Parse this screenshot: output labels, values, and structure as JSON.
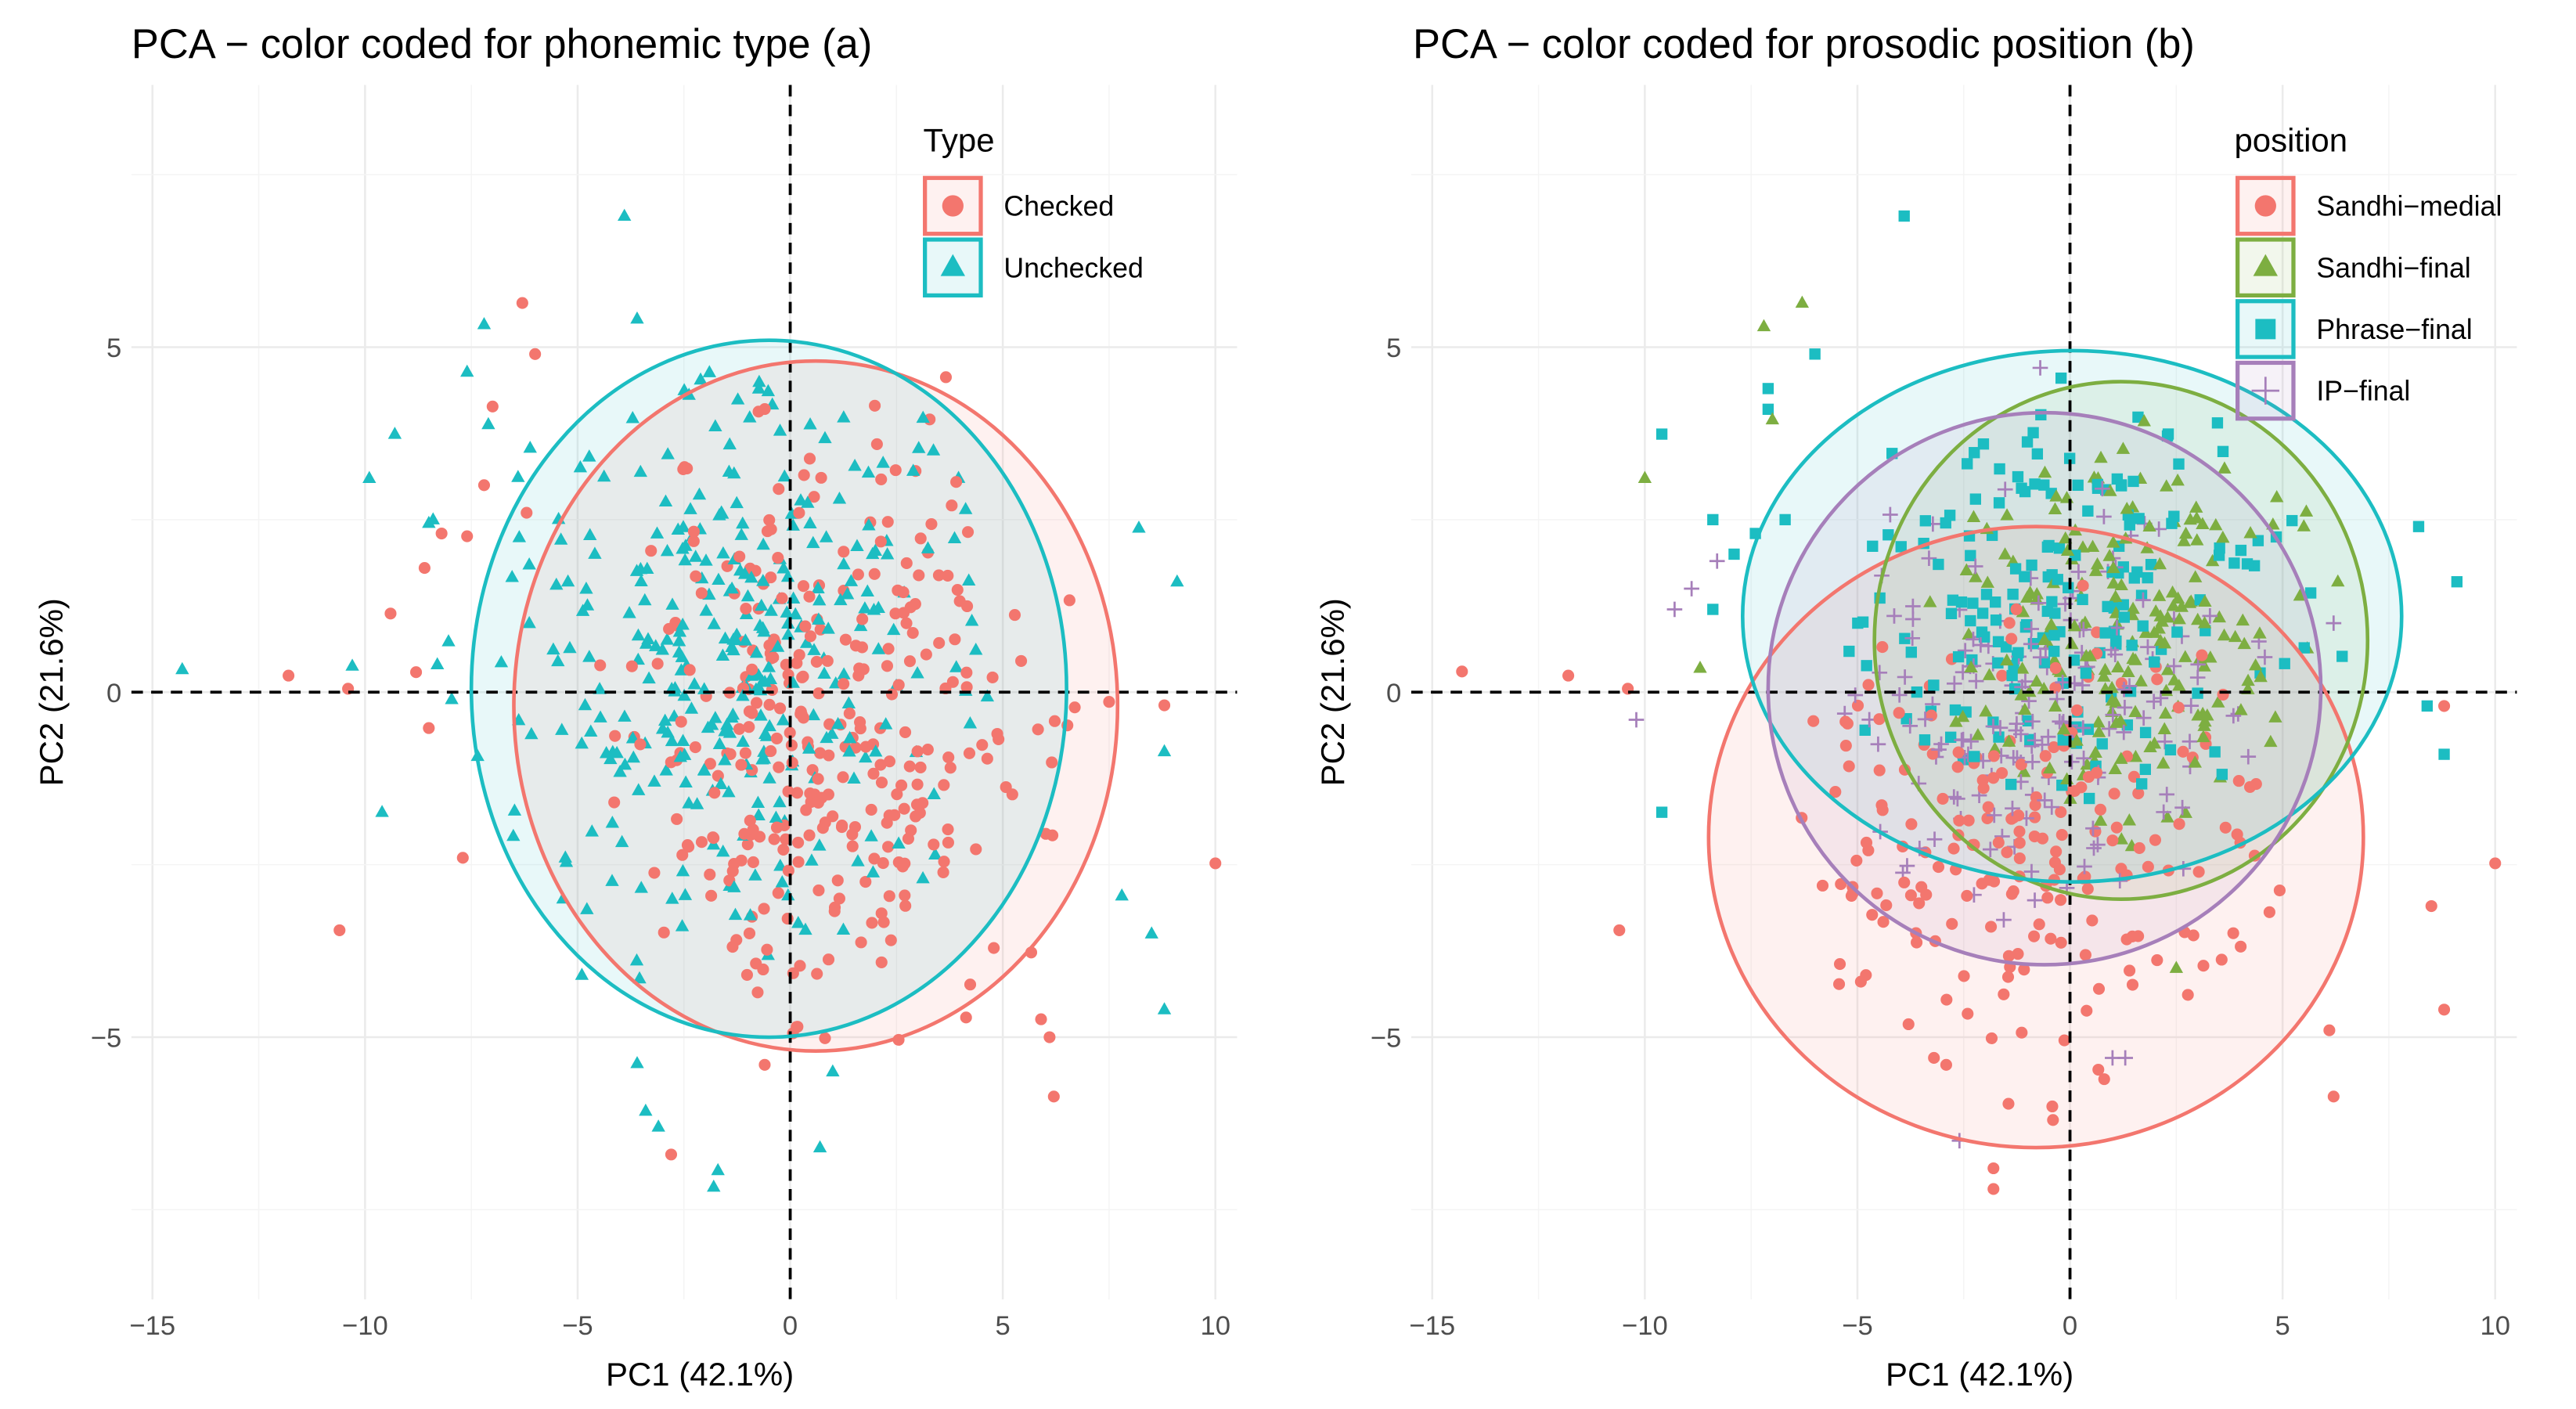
{
  "chart_data": [
    {
      "type": "scatter",
      "title": "PCA − color coded for phonemic type (a)",
      "xlabel": "PC1 (42.1%)",
      "ylabel": "PC2 (21.6%)",
      "xlim": [
        -15.5,
        10.5
      ],
      "ylim": [
        -8.8,
        8.8
      ],
      "xticks": [
        -15,
        -10,
        -5,
        0,
        5,
        10
      ],
      "yticks": [
        -5,
        0,
        5
      ],
      "grid": true,
      "reference_lines": {
        "x": 0,
        "y": 0,
        "style": "dashed"
      },
      "legend": {
        "title": "Type",
        "placement": "top-right"
      },
      "series": [
        {
          "name": "Checked",
          "shape": "circle",
          "color": "#F3766E",
          "ellipse": {
            "cx": 0.6,
            "cy": -0.2,
            "rx": 7.1,
            "ry": 5.0
          },
          "cloud": {
            "cx": 1.2,
            "cy": -0.5,
            "sx": 2.3,
            "sy": 2.0,
            "n": 320,
            "seed": 11
          },
          "points": [
            [
              -6.3,
              5.64
            ],
            [
              -6.0,
              4.9
            ],
            [
              -7.0,
              4.14
            ],
            [
              -7.2,
              3.0
            ],
            [
              -8.6,
              1.8
            ],
            [
              -9.4,
              1.14
            ],
            [
              -11.8,
              0.24
            ],
            [
              -10.4,
              0.05
            ],
            [
              -8.5,
              -0.52
            ],
            [
              -10.6,
              -3.45
            ],
            [
              -8.8,
              0.29
            ],
            [
              10.0,
              -2.48
            ],
            [
              8.8,
              -0.19
            ],
            [
              7.5,
              -0.14
            ],
            [
              5.9,
              -4.74
            ],
            [
              6.1,
              -5.0
            ],
            [
              6.2,
              -5.86
            ],
            [
              -2.8,
              -6.7
            ],
            [
              -0.6,
              -5.4
            ],
            [
              -8.2,
              2.3
            ],
            [
              -7.6,
              2.26
            ],
            [
              -7.7,
              -2.4
            ],
            [
              -6.2,
              2.6
            ]
          ]
        },
        {
          "name": "Unchecked",
          "shape": "triangle",
          "color": "#1CBDC2",
          "ellipse": {
            "cx": -0.5,
            "cy": 0.05,
            "rx": 7.0,
            "ry": 5.05
          },
          "cloud": {
            "cx": -1.5,
            "cy": 0.6,
            "sx": 2.6,
            "sy": 2.0,
            "n": 330,
            "seed": 23
          },
          "points": [
            [
              -14.3,
              0.33
            ],
            [
              -10.3,
              0.38
            ],
            [
              -9.9,
              3.1
            ],
            [
              -9.3,
              3.74
            ],
            [
              -9.6,
              -1.74
            ],
            [
              -7.2,
              5.33
            ],
            [
              -7.6,
              4.64
            ],
            [
              -7.1,
              3.88
            ],
            [
              -8.5,
              2.45
            ],
            [
              -3.9,
              6.9
            ],
            [
              8.2,
              2.38
            ],
            [
              9.1,
              1.6
            ],
            [
              8.8,
              -0.86
            ],
            [
              7.8,
              -2.95
            ],
            [
              8.5,
              -3.5
            ],
            [
              8.8,
              -4.6
            ],
            [
              -3.6,
              -5.38
            ],
            [
              -3.4,
              -6.07
            ],
            [
              -3.1,
              -6.3
            ],
            [
              -1.7,
              -6.93
            ],
            [
              -1.8,
              -7.17
            ],
            [
              0.7,
              -6.6
            ],
            [
              1.0,
              -5.5
            ],
            [
              -4.9,
              -4.1
            ],
            [
              -8.4,
              2.5
            ],
            [
              -8.3,
              0.4
            ]
          ]
        }
      ]
    },
    {
      "type": "scatter",
      "title": "PCA − color coded for prosodic position (b)",
      "xlabel": "PC1 (42.1%)",
      "ylabel": "PC2 (21.6%)",
      "xlim": [
        -15.5,
        10.5
      ],
      "ylim": [
        -8.8,
        8.8
      ],
      "xticks": [
        -15,
        -10,
        -5,
        0,
        5,
        10
      ],
      "yticks": [
        -5,
        0,
        5
      ],
      "grid": true,
      "reference_lines": {
        "x": 0,
        "y": 0,
        "style": "dashed"
      },
      "legend": {
        "title": "position",
        "placement": "top-right"
      },
      "series": [
        {
          "name": "Sandhi−medial",
          "shape": "circle",
          "color": "#F3766E",
          "ellipse": {
            "cx": -0.8,
            "cy": -2.1,
            "rx": 7.7,
            "ry": 4.5
          },
          "cloud": {
            "cx": -1.0,
            "cy": -2.3,
            "sx": 2.6,
            "sy": 1.6,
            "n": 200,
            "seed": 31
          },
          "points": [
            [
              -14.3,
              0.3
            ],
            [
              -11.8,
              0.24
            ],
            [
              -10.4,
              0.05
            ],
            [
              -10.6,
              -3.45
            ],
            [
              10.0,
              -2.48
            ],
            [
              8.8,
              -0.2
            ],
            [
              8.5,
              -3.1
            ],
            [
              8.8,
              -4.6
            ],
            [
              6.1,
              -4.9
            ],
            [
              6.2,
              -5.86
            ],
            [
              -1.8,
              -6.9
            ],
            [
              -1.8,
              -7.2
            ],
            [
              -0.4,
              -6.2
            ],
            [
              -4.8,
              -4.1
            ],
            [
              -3.2,
              -5.3
            ]
          ]
        },
        {
          "name": "Sandhi−final",
          "shape": "triangle",
          "color": "#7DAE41",
          "ellipse": {
            "cx": 1.2,
            "cy": 0.75,
            "rx": 5.8,
            "ry": 3.75
          },
          "cloud": {
            "cx": 1.3,
            "cy": 0.8,
            "sx": 2.0,
            "sy": 1.3,
            "n": 200,
            "seed": 47
          },
          "points": [
            [
              -10.0,
              3.1
            ],
            [
              -7.2,
              5.3
            ],
            [
              -6.3,
              5.64
            ],
            [
              -7.0,
              3.95
            ],
            [
              -8.7,
              0.35
            ],
            [
              2.5,
              -4.0
            ],
            [
              5.5,
              2.4
            ],
            [
              6.3,
              1.6
            ]
          ]
        },
        {
          "name": "Phrase−final",
          "shape": "square",
          "color": "#1CBDC2",
          "ellipse": {
            "cx": 0.05,
            "cy": 1.1,
            "rx": 7.75,
            "ry": 3.85
          },
          "cloud": {
            "cx": 0.0,
            "cy": 1.3,
            "sx": 2.4,
            "sy": 1.3,
            "n": 180,
            "seed": 59
          },
          "points": [
            [
              -3.9,
              6.9
            ],
            [
              -6.0,
              4.9
            ],
            [
              -7.1,
              4.4
            ],
            [
              -7.1,
              4.1
            ],
            [
              -9.6,
              3.74
            ],
            [
              -8.4,
              2.5
            ],
            [
              -8.4,
              1.2
            ],
            [
              -9.6,
              -1.74
            ],
            [
              8.2,
              2.4
            ],
            [
              9.1,
              1.6
            ],
            [
              8.8,
              -0.9
            ],
            [
              8.4,
              -0.2
            ],
            [
              -7.4,
              2.3
            ],
            [
              -6.7,
              2.5
            ],
            [
              -7.9,
              2.0
            ]
          ]
        },
        {
          "name": "IP−final",
          "shape": "cross",
          "color": "#A67FBA",
          "ellipse": {
            "cx": -0.6,
            "cy": 0.05,
            "rx": 6.5,
            "ry": 4.0
          },
          "cloud": {
            "cx": -0.6,
            "cy": 0.0,
            "sx": 2.2,
            "sy": 1.4,
            "n": 170,
            "seed": 71
          },
          "points": [
            [
              -10.2,
              -0.4
            ],
            [
              -9.3,
              1.2
            ],
            [
              -8.3,
              1.9
            ],
            [
              -2.6,
              -6.5
            ],
            [
              1.0,
              -5.3
            ],
            [
              1.3,
              -5.3
            ],
            [
              -0.7,
              4.7
            ],
            [
              6.2,
              1.0
            ],
            [
              -8.9,
              1.5
            ]
          ]
        }
      ]
    }
  ]
}
